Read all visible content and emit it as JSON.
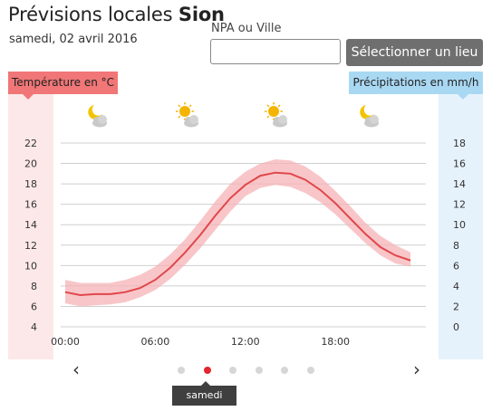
{
  "header": {
    "title_prefix": "Prévisions locales",
    "title_location": "Sion",
    "date": "samedi, 02 avril 2016"
  },
  "search": {
    "label": "NPA ou Ville",
    "value": "",
    "placeholder": "",
    "button_label": "Sélectionner un lieu"
  },
  "legend": {
    "temperature": "Température en °C",
    "precipitation": "Précipitations en mm/h"
  },
  "weather_icons": [
    "moon-cloud-icon",
    "sun-cloud-icon",
    "sun-cloud-icon",
    "moon-cloud-icon"
  ],
  "colors": {
    "temp_line": "#e0474c",
    "temp_band": "#f5b3b6",
    "grid": "#cfcfcf",
    "active_dot": "#e3262f"
  },
  "navigation": {
    "prev": "‹",
    "next": "›",
    "dots": 6,
    "active_index": 1,
    "active_label": "samedi"
  },
  "chart_data": {
    "type": "line",
    "x_labels": [
      "00:00",
      "06:00",
      "12:00",
      "18:00"
    ],
    "x_hours": [
      0,
      1,
      2,
      3,
      4,
      5,
      6,
      7,
      8,
      9,
      10,
      11,
      12,
      13,
      14,
      15,
      16,
      17,
      18,
      19,
      20,
      21,
      22,
      23
    ],
    "series": [
      {
        "values": [
          7.4,
          7.1,
          7.2,
          7.2,
          7.4,
          7.8,
          8.6,
          9.8,
          11.3,
          13.0,
          14.9,
          16.6,
          17.9,
          18.8,
          19.1,
          19.0,
          18.4,
          17.4,
          16.1,
          14.6,
          13.1,
          11.8,
          11.0,
          10.5
        ],
        "low": [
          6.3,
          6.0,
          6.1,
          6.2,
          6.4,
          6.9,
          7.6,
          8.7,
          10.1,
          11.7,
          13.5,
          15.3,
          16.8,
          17.6,
          17.9,
          17.7,
          17.1,
          16.2,
          15.0,
          13.6,
          12.2,
          11.0,
          10.2,
          9.9
        ],
        "high": [
          8.6,
          8.3,
          8.3,
          8.3,
          8.6,
          9.1,
          9.9,
          11.1,
          12.6,
          14.4,
          16.3,
          18.0,
          19.2,
          20.0,
          20.4,
          20.3,
          19.7,
          18.7,
          17.3,
          15.8,
          14.2,
          12.9,
          12.0,
          11.3
        ]
      }
    ],
    "y_left": {
      "label": "Température en °C",
      "ticks": [
        4,
        6,
        8,
        10,
        12,
        14,
        16,
        18,
        20,
        22
      ],
      "ylim": [
        4,
        22
      ]
    },
    "y_right": {
      "label": "Précipitations en mm/h",
      "ticks": [
        0,
        2,
        4,
        6,
        8,
        10,
        12,
        14,
        16,
        18
      ],
      "ylim": [
        0,
        18
      ]
    },
    "grid": true
  }
}
